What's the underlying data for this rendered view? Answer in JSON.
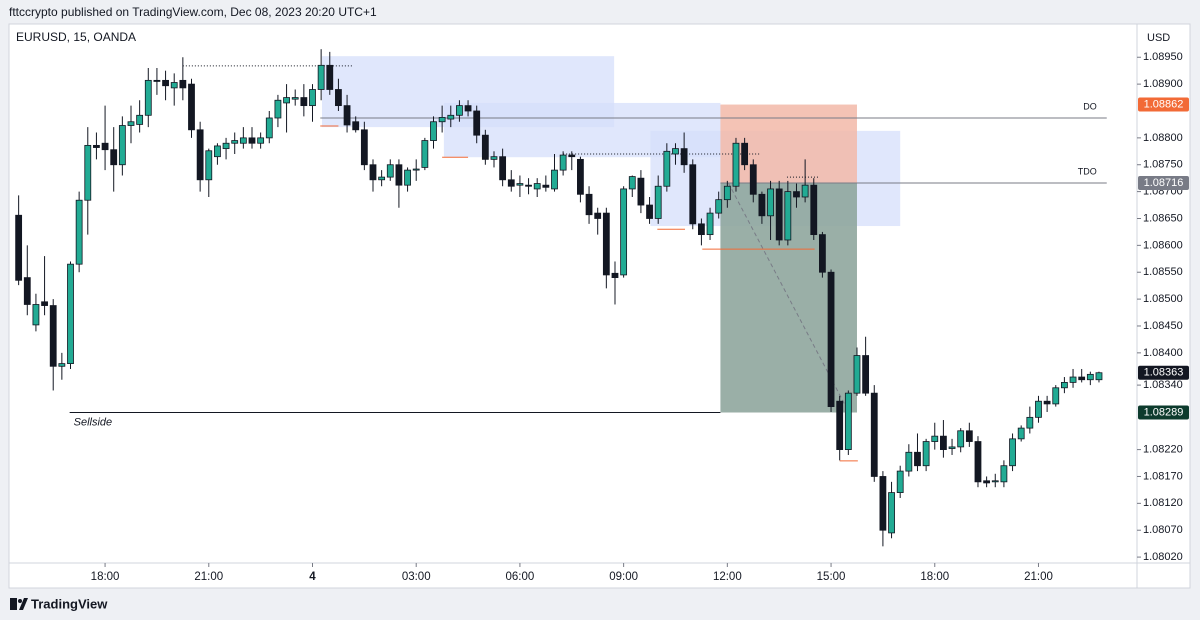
{
  "header": "fttccrypto published on TradingView.com, Dec 08, 2023 20:20 UTC+1",
  "footer": "TradingView",
  "chart_data": {
    "type": "candlestick",
    "title": "EURUSD, 15, OANDA",
    "currency": "USD",
    "up_color": "#22ab94",
    "down_color": "#131722",
    "xlim": [
      -1,
      129.4
    ],
    "ylim": [
      1.08009,
      1.0901
    ],
    "xticks": [
      {
        "value": 10,
        "label": "18:00"
      },
      {
        "value": 22,
        "label": "21:00"
      },
      {
        "value": 34,
        "label": "4"
      },
      {
        "value": 46,
        "label": "03:00"
      },
      {
        "value": 58,
        "label": "06:00"
      },
      {
        "value": 70,
        "label": "09:00"
      },
      {
        "value": 82,
        "label": "12:00"
      },
      {
        "value": 94,
        "label": "15:00"
      },
      {
        "value": 106,
        "label": "18:00"
      },
      {
        "value": 118,
        "label": "21:00"
      }
    ],
    "yticks": [
      {
        "value": 1.0895,
        "label": "1.08950"
      },
      {
        "value": 1.089,
        "label": "1.08900"
      },
      {
        "value": 1.088,
        "label": "1.08800"
      },
      {
        "value": 1.0875,
        "label": "1.08750"
      },
      {
        "value": 1.087,
        "label": "1.08700"
      },
      {
        "value": 1.0865,
        "label": "1.08650"
      },
      {
        "value": 1.086,
        "label": "1.08600"
      },
      {
        "value": 1.0855,
        "label": "1.08550"
      },
      {
        "value": 1.085,
        "label": "1.08500"
      },
      {
        "value": 1.0845,
        "label": "1.08450"
      },
      {
        "value": 1.084,
        "label": "1.08400"
      },
      {
        "value": 1.0834,
        "label": "1.08340"
      },
      {
        "value": 1.0822,
        "label": "1.08220"
      },
      {
        "value": 1.0817,
        "label": "1.08170"
      },
      {
        "value": 1.0812,
        "label": "1.08120"
      },
      {
        "value": 1.0807,
        "label": "1.08070"
      },
      {
        "value": 1.0802,
        "label": "1.08020"
      }
    ],
    "x": [
      0,
      1,
      2,
      3,
      4,
      5,
      6,
      7,
      8,
      9,
      10,
      11,
      12,
      13,
      14,
      15,
      16,
      17,
      18,
      19,
      20,
      21,
      22,
      23,
      24,
      25,
      26,
      27,
      28,
      29,
      30,
      31,
      32,
      33,
      34,
      35,
      36,
      37,
      38,
      39,
      40,
      41,
      42,
      43,
      44,
      45,
      46,
      47,
      48,
      49,
      50,
      51,
      52,
      53,
      54,
      55,
      56,
      57,
      58,
      59,
      60,
      61,
      62,
      63,
      64,
      65,
      66,
      67,
      68,
      69,
      70,
      71,
      72,
      73,
      74,
      75,
      76,
      77,
      78,
      79,
      80,
      81,
      82,
      83,
      84,
      85,
      86,
      87,
      88,
      89,
      90,
      91,
      92,
      93,
      94,
      95,
      96,
      97,
      98,
      99,
      100,
      101,
      102,
      103,
      104,
      105,
      106,
      107,
      108,
      109,
      110,
      111,
      112,
      113,
      114,
      115,
      116,
      117,
      118,
      119,
      120,
      121,
      122,
      123,
      124,
      125
    ],
    "open": [
      1.08656,
      1.0854,
      1.08452,
      1.08495,
      1.08488,
      1.08375,
      1.0838,
      1.08565,
      1.08684,
      1.08786,
      1.0879,
      1.08778,
      1.0875,
      1.08823,
      1.08825,
      1.08842,
      1.08907,
      1.08907,
      1.08893,
      1.08907,
      1.089,
      1.08815,
      1.08722,
      1.08765,
      1.0878,
      1.0879,
      1.0879,
      1.088,
      1.0879,
      1.088,
      1.08837,
      1.08865,
      1.08872,
      1.08875,
      1.0886,
      1.0889,
      1.08935,
      1.0889,
      1.0886,
      1.0883,
      1.08815,
      1.0875,
      1.08722,
      1.08727,
      1.0875,
      1.08712,
      1.0874,
      1.08745,
      1.08795,
      1.0883,
      1.08835,
      1.08842,
      1.0886,
      1.0885,
      1.08805,
      1.0876,
      1.08765,
      1.08722,
      1.08712,
      1.08712,
      1.08705,
      1.08712,
      1.08705,
      1.0874,
      1.08768,
      1.0876,
      1.08695,
      1.0866,
      1.0866,
      1.08548,
      1.08545,
      1.08705,
      1.08725,
      1.08675,
      1.0865,
      1.0871,
      1.0877,
      1.0878,
      1.0875,
      1.0864,
      1.0862,
      1.0866,
      1.08685,
      1.0871,
      1.0879,
      1.0875,
      1.08695,
      1.08655,
      1.08705,
      1.0861,
      1.087,
      1.0869,
      1.08712,
      1.0862,
      1.0855,
      1.0831,
      1.0822,
      1.08325,
      1.08395,
      1.08325,
      1.0817,
      1.08065,
      1.0814,
      1.0818,
      1.08215,
      1.0819,
      1.08235,
      1.08245,
      1.08222,
      1.08225,
      1.08255,
      1.08235,
      1.08162,
      1.0816,
      1.0816,
      1.0819,
      1.0824,
      1.0826,
      1.0828,
      1.0831,
      1.08305,
      1.08335,
      1.08345,
      1.08355,
      1.0835,
      1.0835
    ],
    "high": [
      1.08693,
      1.086,
      1.0851,
      1.0858,
      1.085,
      1.084,
      1.0857,
      1.087,
      1.0882,
      1.0881,
      1.0886,
      1.0882,
      1.0884,
      1.0886,
      1.0887,
      1.0893,
      1.0893,
      1.08925,
      1.0892,
      1.0895,
      1.0891,
      1.0883,
      1.0878,
      1.0879,
      1.088,
      1.0881,
      1.0882,
      1.0882,
      1.0881,
      1.0885,
      1.0888,
      1.089,
      1.0889,
      1.089,
      1.089,
      1.08965,
      1.0896,
      1.0891,
      1.0888,
      1.0884,
      1.0883,
      1.0876,
      1.0874,
      1.0876,
      1.0876,
      1.08745,
      1.0876,
      1.088,
      1.0884,
      1.0886,
      1.0886,
      1.0887,
      1.0887,
      1.0886,
      1.08815,
      1.08775,
      1.0878,
      1.0874,
      1.0873,
      1.08725,
      1.08725,
      1.0873,
      1.0877,
      1.08775,
      1.08775,
      1.08765,
      1.0871,
      1.0867,
      1.0867,
      1.0857,
      1.0871,
      1.0873,
      1.0874,
      1.0869,
      1.0873,
      1.0879,
      1.0879,
      1.0881,
      1.0876,
      1.0865,
      1.0867,
      1.087,
      1.0872,
      1.088,
      1.088,
      1.0876,
      1.087,
      1.0872,
      1.0872,
      1.0872,
      1.08715,
      1.0876,
      1.08725,
      1.08625,
      1.08555,
      1.0832,
      1.0833,
      1.0841,
      1.0843,
      1.0834,
      1.0818,
      1.0816,
      1.0819,
      1.0823,
      1.0825,
      1.0824,
      1.0827,
      1.08275,
      1.0824,
      1.0826,
      1.0827,
      1.08245,
      1.0817,
      1.08175,
      1.082,
      1.0825,
      1.08265,
      1.083,
      1.0832,
      1.0832,
      1.0834,
      1.08355,
      1.0837,
      1.0837,
      1.08365,
      1.08365
    ],
    "low": [
      1.08526,
      1.0847,
      1.0844,
      1.0847,
      1.0833,
      1.0835,
      1.0837,
      1.0855,
      1.0862,
      1.0876,
      1.0874,
      1.087,
      1.0873,
      1.0879,
      1.0881,
      1.0882,
      1.0888,
      1.0887,
      1.0886,
      1.0887,
      1.088,
      1.087,
      1.0869,
      1.0875,
      1.0876,
      1.0877,
      1.0878,
      1.0878,
      1.0878,
      1.0879,
      1.0882,
      1.0881,
      1.0886,
      1.0884,
      1.0883,
      1.0887,
      1.0888,
      1.0885,
      1.0881,
      1.0881,
      1.0874,
      1.087,
      1.0871,
      1.0872,
      1.0867,
      1.087,
      1.0872,
      1.0874,
      1.0878,
      1.0881,
      1.0882,
      1.0883,
      1.0884,
      1.0879,
      1.0875,
      1.08745,
      1.0871,
      1.087,
      1.0869,
      1.08695,
      1.0869,
      1.087,
      1.087,
      1.0873,
      1.0874,
      1.0868,
      1.0864,
      1.0862,
      1.0852,
      1.0849,
      1.0854,
      1.0869,
      1.0866,
      1.0864,
      1.0864,
      1.087,
      1.0875,
      1.08735,
      1.0863,
      1.086,
      1.0861,
      1.0865,
      1.0867,
      1.087,
      1.0874,
      1.0868,
      1.0864,
      1.0861,
      1.086,
      1.086,
      1.0867,
      1.0868,
      1.0861,
      1.0854,
      1.0829,
      1.082,
      1.0821,
      1.0832,
      1.0832,
      1.0816,
      1.0804,
      1.08055,
      1.0813,
      1.0817,
      1.0818,
      1.0818,
      1.0822,
      1.08205,
      1.0821,
      1.08215,
      1.08225,
      1.0815,
      1.0815,
      1.0815,
      1.0815,
      1.0818,
      1.08235,
      1.0825,
      1.0827,
      1.0829,
      1.083,
      1.08325,
      1.08335,
      1.08345,
      1.0834,
      1.08345
    ],
    "close": [
      1.08535,
      1.0849,
      1.0849,
      1.08488,
      1.08375,
      1.0838,
      1.08565,
      1.08684,
      1.08786,
      1.08782,
      1.08778,
      1.0875,
      1.08823,
      1.0883,
      1.08842,
      1.08907,
      1.08905,
      1.08897,
      1.08903,
      1.08893,
      1.08815,
      1.08722,
      1.08776,
      1.08785,
      1.0879,
      1.08795,
      1.088,
      1.0879,
      1.088,
      1.08837,
      1.0887,
      1.08875,
      1.08875,
      1.0886,
      1.0889,
      1.08935,
      1.0889,
      1.0886,
      1.08824,
      1.08815,
      1.0875,
      1.08722,
      1.08727,
      1.0875,
      1.08712,
      1.0874,
      1.08742,
      1.08795,
      1.0883,
      1.08838,
      1.08842,
      1.0886,
      1.0885,
      1.08805,
      1.0876,
      1.08765,
      1.08722,
      1.0871,
      1.08715,
      1.0871,
      1.08715,
      1.08708,
      1.0874,
      1.08768,
      1.08765,
      1.08695,
      1.08657,
      1.0865,
      1.08545,
      1.0854,
      1.08705,
      1.08728,
      1.08675,
      1.0865,
      1.0871,
      1.08775,
      1.0878,
      1.0875,
      1.0864,
      1.0862,
      1.0866,
      1.08685,
      1.0871,
      1.0879,
      1.0875,
      1.08695,
      1.08655,
      1.08705,
      1.0861,
      1.087,
      1.0869,
      1.08712,
      1.0862,
      1.0855,
      1.083,
      1.0822,
      1.08325,
      1.08395,
      1.08325,
      1.0817,
      1.0807,
      1.0814,
      1.0818,
      1.08215,
      1.0819,
      1.08235,
      1.08245,
      1.0822,
      1.08225,
      1.08255,
      1.08235,
      1.0816,
      1.08158,
      1.08162,
      1.0819,
      1.0824,
      1.0826,
      1.0828,
      1.0831,
      1.08305,
      1.08335,
      1.08345,
      1.08355,
      1.0835,
      1.0836,
      1.08363
    ],
    "zones": [
      {
        "x": [
          35.1,
          68.9
        ],
        "y": [
          1.0882,
          1.08952
        ],
        "color": "#d6dffb"
      },
      {
        "x": [
          49.2,
          81.2
        ],
        "y": [
          1.08764,
          1.08865
        ],
        "color": "#d6dffb"
      },
      {
        "x": [
          73.1,
          102.0
        ],
        "y": [
          1.08636,
          1.08813
        ],
        "color": "#d6dffb"
      }
    ],
    "position": {
      "x": [
        81.2,
        97.0
      ],
      "entry": 1.08716,
      "stop": 1.08862,
      "target": 1.08289,
      "stop_color": "#f2b8a8",
      "target_color": "#8fa69d"
    },
    "lines": [
      {
        "x": [
          34.9,
          125.9
        ],
        "y": 1.08837,
        "color": "#787b86",
        "label": "DO"
      },
      {
        "x": [
          81.2,
          125.9
        ],
        "y": 1.08716,
        "color": "#787b86",
        "label": "TDO"
      },
      {
        "x": [
          5.9,
          81.2
        ],
        "y": 1.08289,
        "color": "#131722",
        "label": "Sellside"
      },
      {
        "x": [
          19.0,
          38.7
        ],
        "y": 1.08934,
        "color": "#131722",
        "dash": true
      },
      {
        "x": [
          63.0,
          85.8
        ],
        "y": 1.0877,
        "color": "#131722",
        "dash": true
      },
      {
        "x": [
          88.9,
          92.7
        ],
        "y": 1.08727,
        "color": "#131722",
        "dash": true
      },
      {
        "x": [
          34.9,
          37.0
        ],
        "y": 1.08822,
        "color": "#f26a36"
      },
      {
        "x": [
          49.0,
          52.0
        ],
        "y": 1.08764,
        "color": "#f26a36"
      },
      {
        "x": [
          73.9,
          77.1
        ],
        "y": 1.0863,
        "color": "#f26a36"
      },
      {
        "x": [
          95.0,
          97.1
        ],
        "y": 1.08199,
        "color": "#f26a36"
      },
      {
        "x": [
          79.1,
          92.1
        ],
        "y": 1.08593,
        "color": "#f26a36"
      }
    ],
    "price_labels": [
      {
        "value": 1.08862,
        "color": "#f26a36"
      },
      {
        "value": 1.08716,
        "color": "#787b86"
      },
      {
        "value": 1.08363,
        "color": "#131722"
      },
      {
        "value": 1.08289,
        "color": "#0d3b2d"
      }
    ]
  }
}
